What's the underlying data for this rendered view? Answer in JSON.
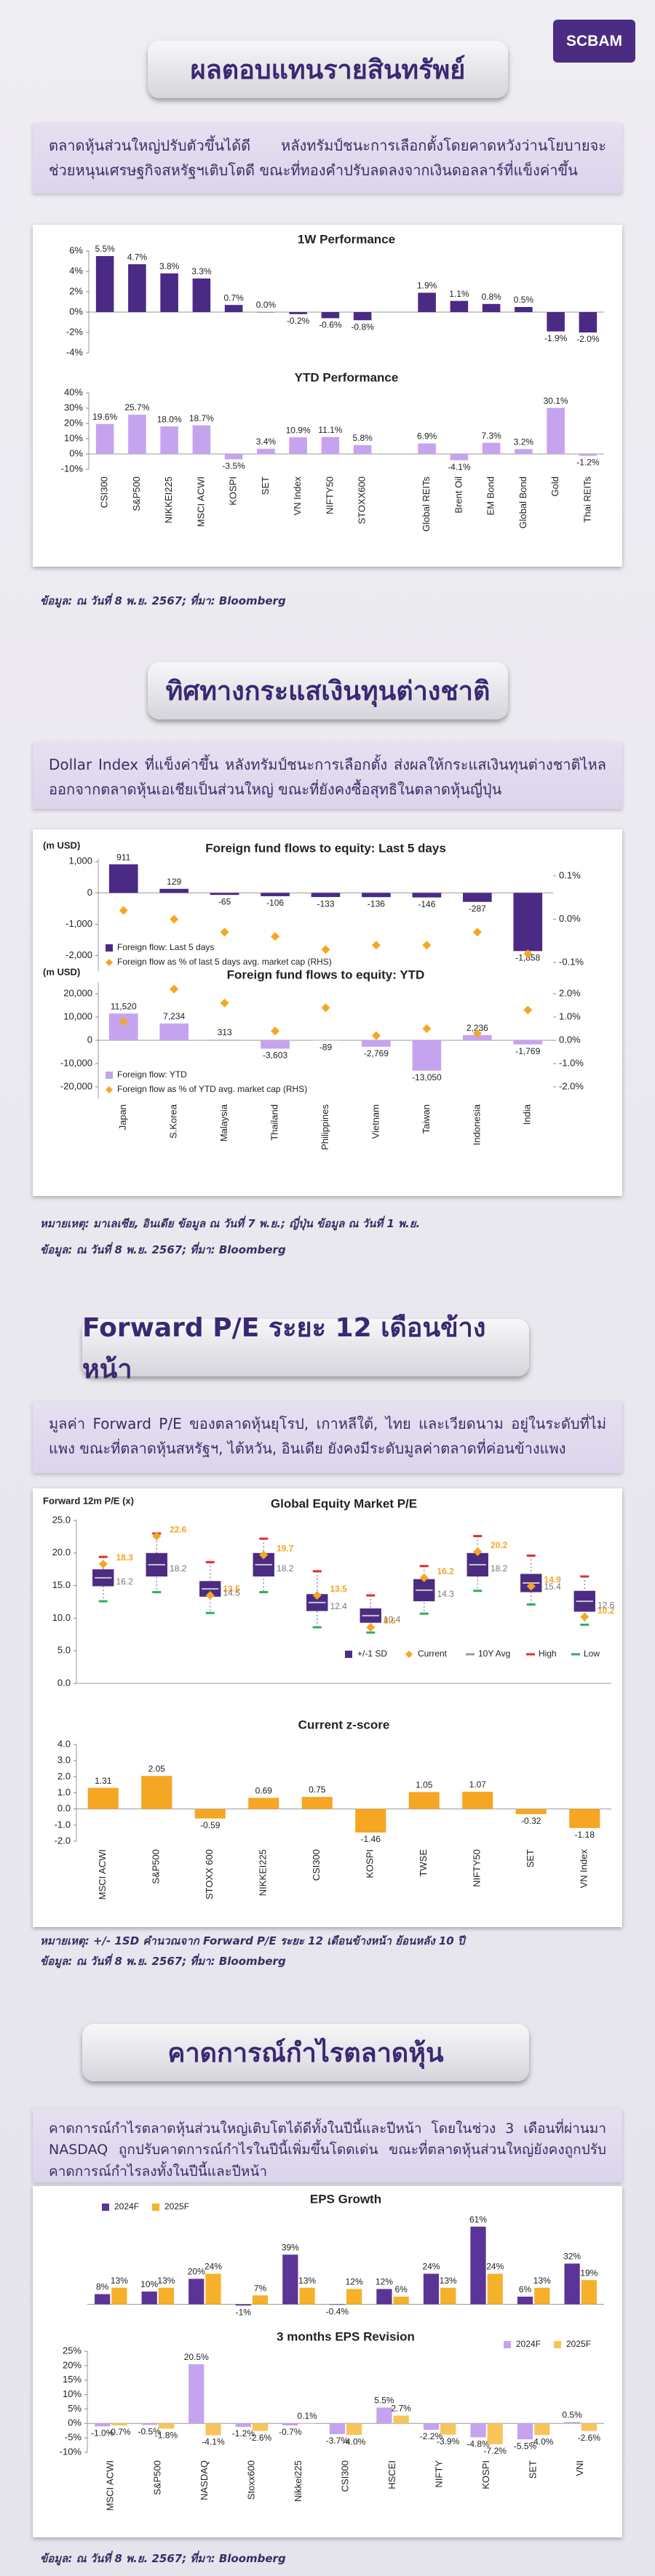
{
  "logo": "SCBAM",
  "sections": [
    {
      "title": "ผลตอบแทนรายสินทรัพย์",
      "text": "ตลาดหุ้นส่วนใหญ่ปรับตัวขึ้นได้ดี หลังทรัมป์ชนะการเลือกตั้งโดยคาดหวังว่านโยบายจะช่วยหนุนเศรษฐกิจสหรัฐฯเติบโตดี ขณะที่ทองคำปรับลดลงจากเงินดอลลาร์ที่แข็งค่าขึ้น",
      "notes": [
        "ข้อมูล: ณ วันที่ 8 พ.ย. 2567; ที่มา: Bloomberg"
      ]
    },
    {
      "title": "ทิศทางกระแสเงินทุนต่างชาติ",
      "text": "Dollar Index ที่แข็งค่าขึ้น หลังทรัมป์ชนะการเลือกตั้ง ส่งผลให้กระแสเงินทุนต่างชาติไหลออกจากตลาดหุ้นเอเชียเป็นส่วนใหญ่ ขณะที่ยังคงซื้อสุทธิในตลาดหุ้นญี่ปุ่น",
      "notes": [
        "หมายเหตุ: มาเลเซีย, อินเดีย ข้อมูล ณ วันที่ 7 พ.ย.; ญี่ปุ่น ข้อมูล ณ วันที่ 1 พ.ย.",
        "ข้อมูล: ณ วันที่ 8 พ.ย. 2567; ที่มา: Bloomberg"
      ]
    },
    {
      "title": "Forward P/E ระยะ 12 เดือนข้างหน้า",
      "text": "มูลค่า Forward P/E ของตลาดหุ้นยุโรป, เกาหลีใต้, ไทย และเวียดนาม อยู่ในระดับที่ไม่แพง ขณะที่ตลาดหุ้นสหรัฐฯ, ไต้หวัน, อินเดีย ยังคงมีระดับมูลค่าตลาดที่ค่อนข้างแพง",
      "notes": [
        "หมายเหตุ: +/- 1SD คำนวณจาก Forward P/E ระยะ 12 เดือนข้างหน้า ย้อนหลัง 10 ปี",
        "ข้อมูล: ณ วันที่ 8 พ.ย. 2567; ที่มา: Bloomberg"
      ]
    },
    {
      "title": "คาดการณ์กำไรตลาดหุ้น",
      "text": "คาดการณ์กำไรตลาดหุ้นส่วนใหญ่เติบโตได้ดีทั้งในปีนี้และปีหน้า โดยในช่วง 3 เดือนที่ผ่านมา NASDAQ ถูกปรับคาดการณ์กำไรในปีนี้เพิ่มขึ้นโดดเด่น ขณะที่ตลาดหุ้นส่วนใหญ่ยังคงถูกปรับคาดการณ์กำไรลงทั้งในปีนี้และปีหน้า",
      "notes": [
        "ข้อมูล: ณ วันที่ 8 พ.ย. 2567; ที่มา: Bloomberg"
      ]
    }
  ],
  "chart_data": [
    {
      "categories": [
        "CSI300",
        "S&P500",
        "NIKKEI225",
        "MSCI ACWI",
        "KOSPI",
        "SET",
        "VN Index",
        "NIFTY50",
        "STOXX600",
        null,
        "Global REITs",
        "Brent Oil",
        "EM Bond",
        "Global Bond",
        "Gold",
        "Thai REITs"
      ],
      "panels": [
        {
          "type": "bar",
          "title": "1W Performance",
          "ylim": [
            -4,
            6
          ],
          "yticks": [
            {
              "value": -4,
              "label": "-4%"
            },
            {
              "value": -2,
              "label": "-2%"
            },
            {
              "value": 0,
              "label": "0%"
            },
            {
              "value": 2,
              "label": "2%"
            },
            {
              "value": 4,
              "label": "4%"
            },
            {
              "value": 6,
              "label": "6%"
            }
          ],
          "series": [
            {
              "color": "#4b2a85",
              "values": [
                5.5,
                4.7,
                3.8,
                3.3,
                0.7,
                0.0,
                -0.2,
                -0.6,
                -0.8,
                null,
                1.9,
                1.1,
                0.8,
                0.5,
                -1.9,
                -2.0
              ],
              "value_labels": [
                "5.5%",
                "4.7%",
                "3.8%",
                "3.3%",
                "0.7%",
                "0.0%",
                "-0.2%",
                "-0.6%",
                "-0.8%",
                null,
                "1.9%",
                "1.1%",
                "0.8%",
                "0.5%",
                "-1.9%",
                "-2.0%"
              ]
            }
          ]
        },
        {
          "type": "bar",
          "title": "YTD Performance",
          "ylim": [
            -10,
            40
          ],
          "yticks": [
            {
              "value": -10,
              "label": "-10%"
            },
            {
              "value": 0,
              "label": "0%"
            },
            {
              "value": 10,
              "label": "10%"
            },
            {
              "value": 20,
              "label": "20%"
            },
            {
              "value": 30,
              "label": "30%"
            },
            {
              "value": 40,
              "label": "40%"
            }
          ],
          "series": [
            {
              "color": "#c6a3ef",
              "values": [
                19.6,
                25.7,
                18.0,
                18.7,
                -3.5,
                3.4,
                10.9,
                11.1,
                5.8,
                null,
                6.9,
                -4.1,
                7.3,
                3.2,
                30.1,
                -1.2
              ],
              "value_labels": [
                "19.6%",
                "25.7%",
                "18.0%",
                "18.7%",
                "-3.5%",
                "3.4%",
                "10.9%",
                "11.1%",
                "5.8%",
                null,
                "6.9%",
                "-4.1%",
                "7.3%",
                "3.2%",
                "30.1%",
                "-1.2%"
              ]
            }
          ]
        }
      ]
    },
    {
      "categories": [
        "Japan",
        "S.Korea",
        "Malaysia",
        "Thailand",
        "Philippines",
        "Vietnam",
        "Taiwan",
        "Indonesia",
        "India"
      ],
      "panels": [
        {
          "type": "combo",
          "title": "Foreign fund flows to equity: Last 5 days",
          "ylabel": "(m USD)",
          "legend": "lower left",
          "ylim": [
            -2500,
            1100
          ],
          "yticks": [
            {
              "value": 1000,
              "label": "1,000"
            },
            0,
            {
              "value": -1000,
              "label": "-1,000"
            },
            {
              "value": -2000,
              "label": "-2,000"
            }
          ],
          "y2lim": [
            -0.12,
            0.14
          ],
          "y2ticks": [
            {
              "value": 0.1,
              "label": "0.1%"
            },
            {
              "value": 0,
              "label": "0.0%"
            },
            {
              "value": -0.1,
              "label": "-0.1%"
            }
          ],
          "series": [
            {
              "name": "Foreign flow: Last 5 days",
              "type": "bar",
              "color": "#4b2a85",
              "values": [
                911,
                129,
                -65,
                -106,
                -133,
                -136,
                -146,
                -287,
                -1858
              ],
              "value_labels": [
                "911",
                "129",
                "-65",
                "-106",
                "-133",
                "-136",
                "-146",
                "-287",
                "-1,858"
              ]
            },
            {
              "name": "Foreign flow as % of last 5 days avg. market cap (RHS)",
              "type": "scatter",
              "axis": "y2",
              "color": "#f5a623",
              "values": [
                0.02,
                0.0,
                -0.03,
                -0.04,
                -0.07,
                -0.06,
                -0.06,
                -0.03,
                -0.08
              ]
            }
          ]
        },
        {
          "type": "combo",
          "title": "Foreign fund flows to equity: YTD",
          "ylabel": "(m USD)",
          "legend": "lower left",
          "ylim": [
            -25000,
            25000
          ],
          "yticks": [
            {
              "value": 20000,
              "label": "20,000"
            },
            {
              "value": 10000,
              "label": "10,000"
            },
            0,
            {
              "value": -10000,
              "label": "-10,000"
            },
            {
              "value": -20000,
              "label": "-20,000"
            }
          ],
          "y2lim": [
            -2.5,
            2.5
          ],
          "y2ticks": [
            {
              "value": 2,
              "label": "2.0%"
            },
            {
              "value": 1,
              "label": "1.0%"
            },
            {
              "value": 0,
              "label": "0.0%"
            },
            {
              "value": -1,
              "label": "-1.0%"
            },
            {
              "value": -2,
              "label": "-2.0%"
            }
          ],
          "series": [
            {
              "name": "Foreign flow: YTD",
              "type": "bar",
              "color": "#c6a3ef",
              "values": [
                11520,
                7234,
                313,
                -3603,
                -89,
                -2769,
                -13050,
                2236,
                -1769
              ],
              "value_labels": [
                "11,520",
                "7,234",
                "313",
                "-3,603",
                "-89",
                "-2,769",
                "-13,050",
                "2,236",
                "-1,769"
              ]
            },
            {
              "name": "Foreign flow as % of YTD avg. market cap (RHS)",
              "type": "scatter",
              "axis": "y2",
              "color": "#f5a623",
              "values": [
                0.8,
                2.2,
                1.6,
                0.4,
                1.4,
                0.2,
                0.5,
                0.3,
                1.3
              ]
            }
          ]
        }
      ]
    },
    {
      "categories": [
        "MSCI ACWI",
        "S&P500",
        "STOXX 600",
        "NIKKEI225",
        "CSI300",
        "KOSPI",
        "TWSE",
        "NIFTY50",
        "SET",
        "VN Index"
      ],
      "panels": [
        {
          "type": "box",
          "title": "Global Equity Market P/E",
          "ylabel": "Forward 12m P/E (x)",
          "legend": "lower right",
          "ylim": [
            0,
            25
          ],
          "yticks": [
            {
              "value": 0,
              "label": "0.0"
            },
            {
              "value": 5,
              "label": "5.0"
            },
            {
              "value": 10,
              "label": "10.0"
            },
            {
              "value": 15,
              "label": "15.0"
            },
            {
              "value": 20,
              "label": "20.0"
            },
            {
              "value": 25,
              "label": "25.0"
            }
          ],
          "series": [
            {
              "name": "+/-1 SD",
              "color": "#4b2c82",
              "values": [
                [
                  14.9,
                  17.5
                ],
                [
                  16.4,
                  20.0
                ],
                [
                  13.3,
                  15.7
                ],
                [
                  16.4,
                  20.0
                ],
                [
                  11.1,
                  13.7
                ],
                [
                  9.3,
                  11.5
                ],
                [
                  12.6,
                  16.0
                ],
                [
                  16.4,
                  20.0
                ],
                [
                  14.0,
                  16.8
                ],
                [
                  11.0,
                  14.2
                ]
              ]
            },
            {
              "name": "Current",
              "color": "#f5a623",
              "values": [
                18.3,
                22.6,
                13.5,
                19.7,
                13.5,
                8.6,
                16.2,
                20.2,
                14.9,
                10.2
              ]
            },
            {
              "name": "10Y Avg",
              "color": "#9a9a9a",
              "values": [
                16.2,
                18.2,
                14.5,
                18.2,
                12.4,
                10.4,
                14.3,
                18.2,
                15.4,
                12.6
              ]
            },
            {
              "name": "High",
              "color": "#e0302e",
              "values": [
                19.4,
                23.0,
                18.6,
                22.2,
                17.2,
                13.5,
                18.0,
                22.6,
                19.6,
                16.4
              ]
            },
            {
              "name": "Low",
              "color": "#2fae5d",
              "values": [
                12.6,
                14.0,
                10.8,
                14.0,
                8.6,
                7.8,
                10.7,
                14.2,
                12.1,
                9.0
              ]
            }
          ]
        },
        {
          "type": "bar",
          "title": "Current z-score",
          "ylim": [
            -2,
            4
          ],
          "yticks": [
            {
              "value": -2,
              "label": "-2.0"
            },
            {
              "value": -1,
              "label": "-1.0"
            },
            {
              "value": 0,
              "label": "0.0"
            },
            {
              "value": 1,
              "label": "1.0"
            },
            {
              "value": 2,
              "label": "2.0"
            },
            {
              "value": 3,
              "label": "3.0"
            },
            {
              "value": 4,
              "label": "4.0"
            }
          ],
          "series": [
            {
              "color": "#f5a623",
              "values": [
                1.31,
                2.05,
                -0.59,
                0.69,
                0.75,
                -1.46,
                1.05,
                1.07,
                -0.32,
                -1.18
              ]
            }
          ]
        }
      ]
    },
    {
      "categories": [
        "MSCI ACWI",
        "S&P500",
        "NASDAQ",
        "Stoxx600",
        "Nikkei225",
        "CSI300",
        "HSCEI",
        "NIFTY",
        "KOSPI",
        "SET",
        "VNI"
      ],
      "panels": [
        {
          "type": "bar",
          "title": "EPS Growth",
          "legend": "upper left",
          "ylim": [
            -10,
            70
          ],
          "series": [
            {
              "name": "2024F",
              "color": "#5b3497",
              "values": [
                8,
                10,
                20,
                -1,
                39,
                -0.4,
                12,
                24,
                61,
                6,
                32
              ],
              "value_labels": [
                "8%",
                "10%",
                "20%",
                "-1%",
                "39%",
                "-0.4%",
                "12%",
                "24%",
                "61%",
                "6%",
                "32%"
              ]
            },
            {
              "name": "2025F",
              "color": "#f6b02a",
              "values": [
                13,
                13,
                24,
                7,
                13,
                12,
                6,
                13,
                24,
                13,
                19
              ],
              "value_labels": [
                "13%",
                "13%",
                "24%",
                "7%",
                "13%",
                "12%",
                "6%",
                "13%",
                "24%",
                "13%",
                "19%"
              ]
            }
          ]
        },
        {
          "type": "bar",
          "title": "3 months EPS Revision",
          "legend": "upper right",
          "ylim": [
            -10,
            25
          ],
          "yticks": [
            {
              "value": -10,
              "label": "-10%"
            },
            {
              "value": -5,
              "label": "-5%"
            },
            {
              "value": 0,
              "label": "0%"
            },
            {
              "value": 5,
              "label": "5%"
            },
            {
              "value": 10,
              "label": "10%"
            },
            {
              "value": 15,
              "label": "15%"
            },
            {
              "value": 20,
              "label": "20%"
            },
            {
              "value": 25,
              "label": "25%"
            }
          ],
          "series": [
            {
              "name": "2024F",
              "color": "#c6a3ef",
              "values": [
                -1.0,
                -0.5,
                20.5,
                -1.2,
                -0.7,
                -3.7,
                5.5,
                -2.2,
                -4.8,
                -5.5,
                0.5
              ],
              "value_labels": [
                "-1.0%",
                "-0.5%",
                "20.5%",
                "-1.2%",
                "-0.7%",
                "-3.7%",
                "5.5%",
                "-2.2%",
                "-4.8%",
                "-5.5%",
                "0.5%"
              ]
            },
            {
              "name": "2025F",
              "color": "#f8c45c",
              "values": [
                -0.7,
                -1.8,
                -4.1,
                -2.6,
                0.1,
                -4.0,
                2.7,
                -3.9,
                -7.2,
                -4.0,
                -2.6
              ],
              "value_labels": [
                "-0.7%",
                "-1.8%",
                "-4.1%",
                "-2.6%",
                "0.1%",
                "-4.0%",
                "2.7%",
                "-3.9%",
                "-7.2%",
                "-4.0%",
                "-2.6%"
              ]
            }
          ]
        }
      ]
    }
  ]
}
